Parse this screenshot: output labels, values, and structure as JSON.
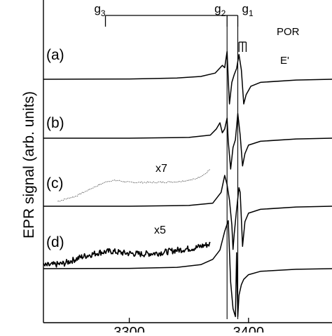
{
  "chart_data": {
    "type": "line",
    "xlabel": "",
    "ylabel": "EPR signal (arb. units)",
    "xlim": [
      3228,
      3470
    ],
    "x_ticks": [
      3300,
      3400
    ],
    "x_tick_labels": [
      "3300",
      "3400"
    ],
    "y_ticks_shown": false,
    "grid": false,
    "g_markers": {
      "g_values": [
        {
          "label": "g",
          "sub": "3",
          "x": 3280
        },
        {
          "label": "g",
          "sub": "2",
          "x": 3382
        },
        {
          "label": "g",
          "sub": "1",
          "x": 3391
        }
      ],
      "bracket_label": "POR",
      "e_prime_label": "E'",
      "e_prime_x": [
        3392,
        3395,
        3398
      ]
    },
    "series": [
      {
        "name": "(a)",
        "panel": "a",
        "baseline": 0.0,
        "x": [
          3228,
          3300,
          3340,
          3360,
          3372,
          3378,
          3380,
          3382,
          3383,
          3384,
          3386,
          3388,
          3390,
          3392,
          3394,
          3396,
          3398,
          3402,
          3410,
          3440,
          3470
        ],
        "y": [
          0,
          0.02,
          0.08,
          0.18,
          0.4,
          0.9,
          0.75,
          1.8,
          0.0,
          -1.6,
          -0.2,
          0.3,
          0.7,
          1.6,
          0.6,
          -1.6,
          -1.0,
          -0.45,
          -0.2,
          -0.05,
          0
        ]
      },
      {
        "name": "(b)",
        "panel": "b",
        "baseline": 0.0,
        "x": [
          3228,
          3300,
          3350,
          3368,
          3373,
          3376,
          3378,
          3380,
          3382,
          3383,
          3385,
          3387,
          3389,
          3391,
          3393,
          3395,
          3397,
          3400,
          3410,
          3440,
          3470
        ],
        "y": [
          0,
          0.0,
          0.05,
          0.2,
          0.6,
          1.0,
          0.35,
          0.6,
          1.3,
          -0.2,
          -2.0,
          -0.6,
          -0.1,
          1.6,
          0.2,
          -1.8,
          -1.0,
          -0.45,
          -0.2,
          -0.05,
          0
        ]
      },
      {
        "name": "(c)",
        "panel": "c",
        "baseline": 0.0,
        "x": [
          3228,
          3300,
          3350,
          3370,
          3377,
          3380,
          3382,
          3384,
          3386,
          3387,
          3388,
          3390,
          3392,
          3393,
          3394,
          3395,
          3397,
          3400,
          3410,
          3440,
          3470
        ],
        "y": [
          0,
          0.0,
          0.05,
          0.2,
          0.9,
          2.0,
          1.4,
          0.4,
          -1.2,
          -2.8,
          -1.8,
          -0.2,
          1.2,
          0.9,
          -0.8,
          -2.6,
          -1.0,
          -0.45,
          -0.2,
          -0.05,
          0
        ]
      },
      {
        "name": "(d)",
        "panel": "d",
        "baseline": 0.0,
        "x": [
          3228,
          3300,
          3340,
          3360,
          3370,
          3376,
          3380,
          3383,
          3385,
          3387,
          3389,
          3390,
          3391,
          3392,
          3394,
          3396,
          3400,
          3410,
          3440,
          3470
        ],
        "y": [
          0,
          0.02,
          0.1,
          0.3,
          0.7,
          1.4,
          2.8,
          3.6,
          -1.0,
          -3.0,
          -3.6,
          1.2,
          -3.6,
          -2.0,
          -1.2,
          -0.8,
          -0.45,
          -0.2,
          -0.05,
          0
        ]
      },
      {
        "name": "x7",
        "panel": "c",
        "style": "dotted",
        "magnified": true,
        "x": [
          3240,
          3255,
          3270,
          3282,
          3290,
          3300,
          3320,
          3340,
          3355,
          3365,
          3368
        ],
        "y": [
          0.0,
          0.8,
          2.2,
          3.2,
          3.3,
          3.0,
          3.0,
          3.1,
          3.5,
          4.5,
          5.2
        ]
      },
      {
        "name": "x5",
        "panel": "d",
        "style": "noisy",
        "magnified": true,
        "x": [
          3228,
          3245,
          3260,
          3275,
          3285,
          3295,
          3310,
          3325,
          3340,
          3355,
          3362,
          3368
        ],
        "y": [
          0.0,
          0.4,
          1.6,
          2.4,
          2.6,
          2.3,
          2.1,
          2.3,
          2.8,
          3.2,
          3.6,
          3.9
        ]
      }
    ]
  }
}
